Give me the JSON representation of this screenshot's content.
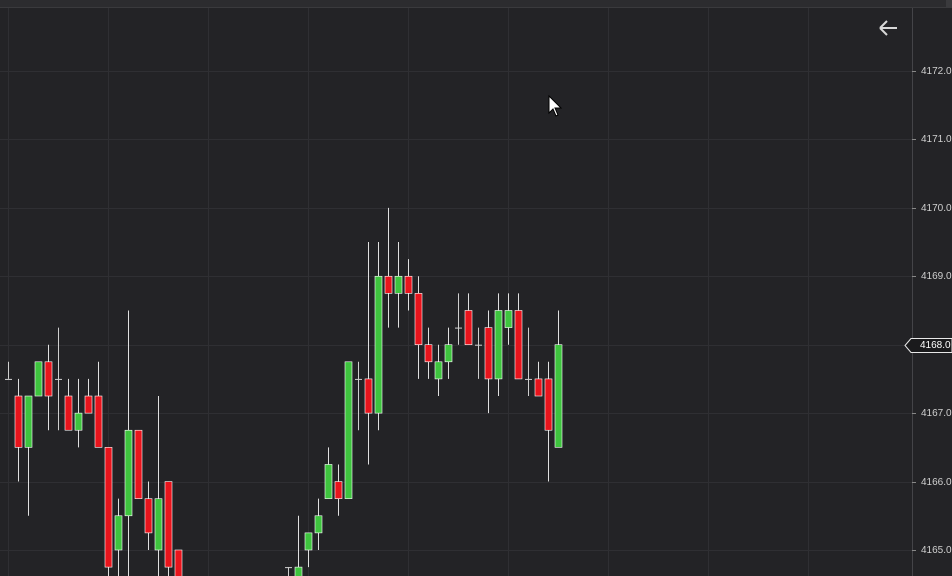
{
  "chart_data": {
    "type": "candlestick",
    "categories": [
      null,
      null,
      null,
      null,
      null,
      null,
      null,
      null,
      null,
      null,
      null,
      null,
      null,
      null,
      null,
      null,
      null,
      null,
      null,
      null,
      null,
      null,
      null,
      null,
      null,
      null,
      null,
      null,
      null,
      null,
      null,
      null,
      null,
      null,
      null,
      null,
      null,
      null,
      null,
      null,
      null,
      null,
      null,
      null,
      null,
      null,
      null,
      null,
      null,
      null,
      null,
      null,
      null,
      null,
      null,
      null
    ],
    "open": [
      4167.5,
      4167.25,
      4166.5,
      4167.25,
      4167.75,
      4167.5,
      4167.25,
      4166.75,
      4167.25,
      4167.25,
      4166.5,
      4165,
      4165.5,
      4166.75,
      4165.75,
      4165,
      4166,
      4165,
      null,
      null,
      null,
      null,
      null,
      null,
      null,
      null,
      null,
      null,
      4164.75,
      4164.5,
      4165,
      4165.25,
      4165.75,
      4166,
      4165.75,
      4167.5,
      4167.5,
      4167,
      4169,
      4168.75,
      4169,
      4168.75,
      4168,
      4167.5,
      4167.75,
      4168.25,
      4168.5,
      4168,
      4168.25,
      4167.5,
      4168.25,
      4168.5,
      4167.5,
      4167.5,
      4167.5,
      4166.5
    ],
    "high": [
      4167.75,
      4167.5,
      4167.25,
      4167.75,
      4168,
      4168.25,
      4167.5,
      4167.5,
      4167.5,
      4167.75,
      4166.5,
      4165.75,
      4168.5,
      4166.75,
      4166,
      4167.25,
      4166,
      4165,
      null,
      null,
      null,
      null,
      null,
      null,
      null,
      null,
      null,
      null,
      4164.75,
      4165.5,
      4165.25,
      4165.75,
      4166.5,
      4166.25,
      4167.75,
      4167.75,
      4169.5,
      4169.5,
      4170,
      4169.5,
      4169.25,
      4169,
      4168.25,
      4168,
      4168.25,
      4168.75,
      4168.75,
      4168.25,
      4168.5,
      4168.75,
      4168.75,
      4168.75,
      4168.25,
      4167.75,
      4167.75,
      4168.5
    ],
    "low": [
      4167.5,
      4166,
      4165.5,
      4167.25,
      4166.75,
      4166.75,
      4166.75,
      4166.5,
      4167,
      4166.5,
      4164.5,
      4164.5,
      4164.5,
      4165.75,
      4165,
      4164.5,
      4164.5,
      4164.5,
      null,
      null,
      null,
      null,
      null,
      null,
      null,
      null,
      null,
      null,
      4164.5,
      4164.5,
      4164.75,
      4165,
      4165.75,
      4165.5,
      4165.75,
      4166.75,
      4166.25,
      4166.75,
      4168.25,
      4168.25,
      4168.5,
      4167.5,
      4167.5,
      4167.25,
      4167.5,
      4168,
      4168,
      4167.5,
      4167,
      4167.25,
      4168,
      4167.5,
      4167.25,
      4167.25,
      4166,
      4166.5
    ],
    "close": [
      4167.5,
      4166.5,
      4167.25,
      4167.75,
      4167.25,
      4167.5,
      4166.75,
      4167,
      4167,
      4166.5,
      4164.75,
      4165.5,
      4166.75,
      4165.75,
      4165.25,
      4165.75,
      4164.75,
      4164.5,
      null,
      null,
      null,
      null,
      null,
      null,
      null,
      null,
      null,
      null,
      4164.75,
      4164.75,
      4165.25,
      4165.5,
      4166.25,
      4165.75,
      4167.75,
      4167.5,
      4167,
      4169,
      4168.75,
      4169,
      4168.75,
      4168,
      4167.75,
      4167.75,
      4168,
      4168.25,
      4168,
      4168,
      4167.5,
      4168.5,
      4168.5,
      4167.5,
      4167.5,
      4167.25,
      4166.75,
      4168
    ],
    "up_color": "#3ec43e",
    "down_color": "#e8141c",
    "ylim": [
      4164.62,
      4172.92
    ],
    "yticks": [
      {
        "value": 4165,
        "label": "4165.0"
      },
      {
        "value": 4166,
        "label": "4166.0"
      },
      {
        "value": 4167,
        "label": "4167.0"
      },
      {
        "value": 4168,
        "label": "4168.0"
      },
      {
        "value": 4169,
        "label": "4169.0"
      },
      {
        "value": 4170,
        "label": "4170.0"
      },
      {
        "value": 4171,
        "label": "4171.0"
      },
      {
        "value": 4172,
        "label": "4172.0"
      }
    ],
    "current_price": {
      "value": 4168,
      "label": "4168.0"
    },
    "grid": true
  }
}
